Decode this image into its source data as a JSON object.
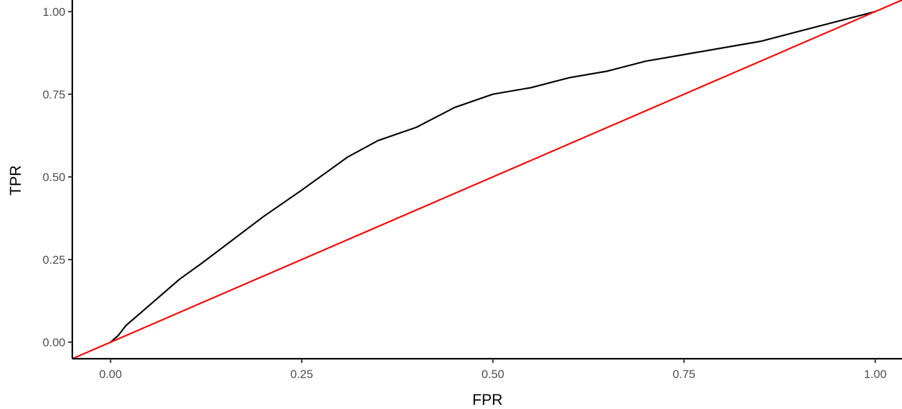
{
  "chart_data": {
    "type": "line",
    "xlabel": "FPR",
    "ylabel": "TPR",
    "xlim": [
      -0.05,
      1.035
    ],
    "ylim": [
      -0.05,
      1.035
    ],
    "x_ticks": [
      0.0,
      0.25,
      0.5,
      0.75,
      1.0
    ],
    "x_tick_labels": [
      "0.00",
      "0.25",
      "0.50",
      "0.75",
      "1.00"
    ],
    "y_ticks": [
      0.0,
      0.25,
      0.5,
      0.75,
      1.0
    ],
    "y_tick_labels": [
      "0.00",
      "0.25",
      "0.50",
      "0.75",
      "1.00"
    ],
    "grid": false,
    "legend": "none",
    "series": [
      {
        "color": "#000000",
        "points": [
          [
            0.0,
            0.0
          ],
          [
            0.01,
            0.02
          ],
          [
            0.02,
            0.05
          ],
          [
            0.03,
            0.07
          ],
          [
            0.04,
            0.09
          ],
          [
            0.06,
            0.13
          ],
          [
            0.09,
            0.19
          ],
          [
            0.12,
            0.24
          ],
          [
            0.16,
            0.31
          ],
          [
            0.2,
            0.38
          ],
          [
            0.25,
            0.46
          ],
          [
            0.28,
            0.51
          ],
          [
            0.31,
            0.56
          ],
          [
            0.35,
            0.61
          ],
          [
            0.4,
            0.65
          ],
          [
            0.45,
            0.71
          ],
          [
            0.5,
            0.75
          ],
          [
            0.55,
            0.77
          ],
          [
            0.6,
            0.8
          ],
          [
            0.65,
            0.82
          ],
          [
            0.7,
            0.85
          ],
          [
            0.75,
            0.87
          ],
          [
            0.8,
            0.89
          ],
          [
            0.85,
            0.91
          ],
          [
            0.9,
            0.94
          ],
          [
            0.95,
            0.97
          ],
          [
            1.0,
            1.0
          ]
        ]
      },
      {
        "color": "#ff0000",
        "points": [
          [
            -0.05,
            -0.05
          ],
          [
            1.035,
            1.035
          ]
        ]
      }
    ]
  }
}
